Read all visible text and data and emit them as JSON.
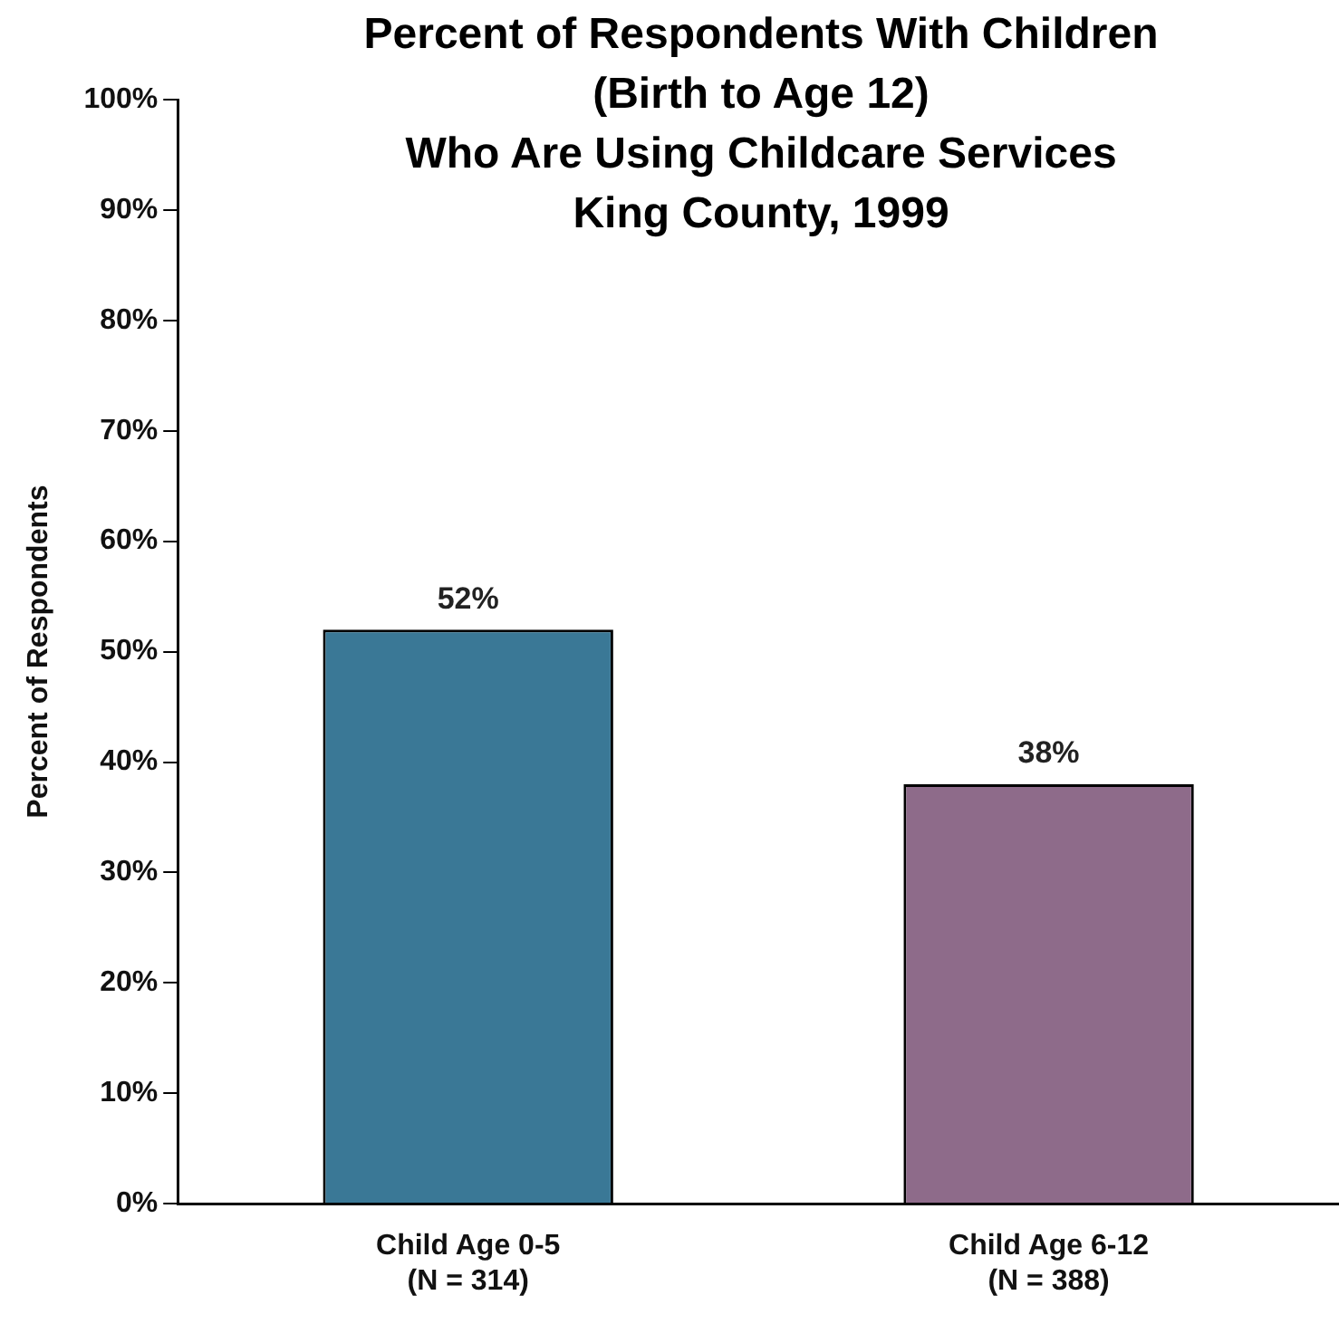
{
  "chart_data": {
    "type": "bar",
    "title": "Percent of Respondents With Children\n(Birth to Age 12)\nWho Are Using Childcare Services\nKing County, 1999",
    "ylabel": "Percent of Respondents",
    "categories": [
      "Child Age 0-5\n(N = 314)",
      "Child Age 6-12\n(N = 388)"
    ],
    "values": [
      52,
      38
    ],
    "colors": [
      "#3a7896",
      "#8e6b8a"
    ],
    "ylim": [
      0,
      100
    ],
    "yticks": [
      {
        "value": 0,
        "label": "0%"
      },
      {
        "value": 10,
        "label": "10%"
      },
      {
        "value": 20,
        "label": "20%"
      },
      {
        "value": 30,
        "label": "30%"
      },
      {
        "value": 40,
        "label": "40%"
      },
      {
        "value": 50,
        "label": "50%"
      },
      {
        "value": 60,
        "label": "60%"
      },
      {
        "value": 70,
        "label": "70%"
      },
      {
        "value": 80,
        "label": "80%"
      },
      {
        "value": 90,
        "label": "90%"
      },
      {
        "value": 100,
        "label": "100%"
      }
    ],
    "value_labels": [
      "52%",
      "38%"
    ],
    "grid": false,
    "legend": false
  }
}
